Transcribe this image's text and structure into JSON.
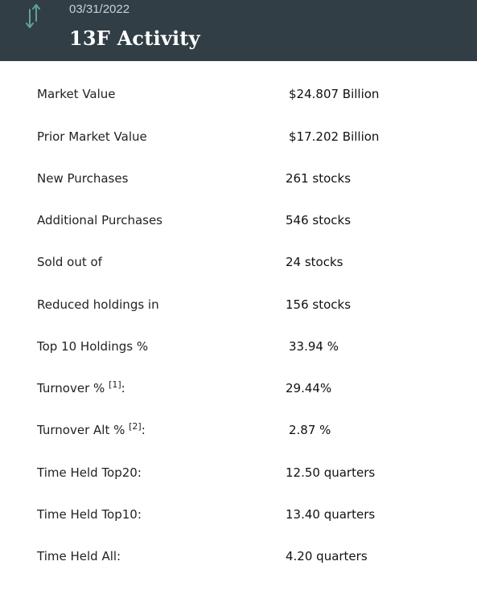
{
  "header": {
    "date": "03/31/2022",
    "title": "13F Activity",
    "icon": "up-down-arrows-icon",
    "icon_color": "#5fa393",
    "background": "#323e45"
  },
  "stats": [
    {
      "label": "Market Value",
      "value": "$24.807 Billion"
    },
    {
      "label": "Prior Market Value",
      "value": "$17.202 Billion"
    },
    {
      "label": "New Purchases",
      "value": "261 stocks"
    },
    {
      "label": "Additional Purchases",
      "value": "546 stocks"
    },
    {
      "label": "Sold out of",
      "value": "24 stocks"
    },
    {
      "label": "Reduced holdings in",
      "value": "156 stocks"
    },
    {
      "label": "Top 10 Holdings %",
      "value": "33.94 %"
    },
    {
      "label": "Turnover %",
      "footnote": "[1]",
      "suffix": ":",
      "value": "29.44%"
    },
    {
      "label": "Turnover Alt %",
      "footnote": "[2]",
      "suffix": ":",
      "value": "2.87 %"
    },
    {
      "label": "Time Held Top20:",
      "value": "12.50 quarters"
    },
    {
      "label": "Time Held Top10:",
      "value": "13.40 quarters"
    },
    {
      "label": "Time Held All:",
      "value": "4.20 quarters"
    }
  ]
}
